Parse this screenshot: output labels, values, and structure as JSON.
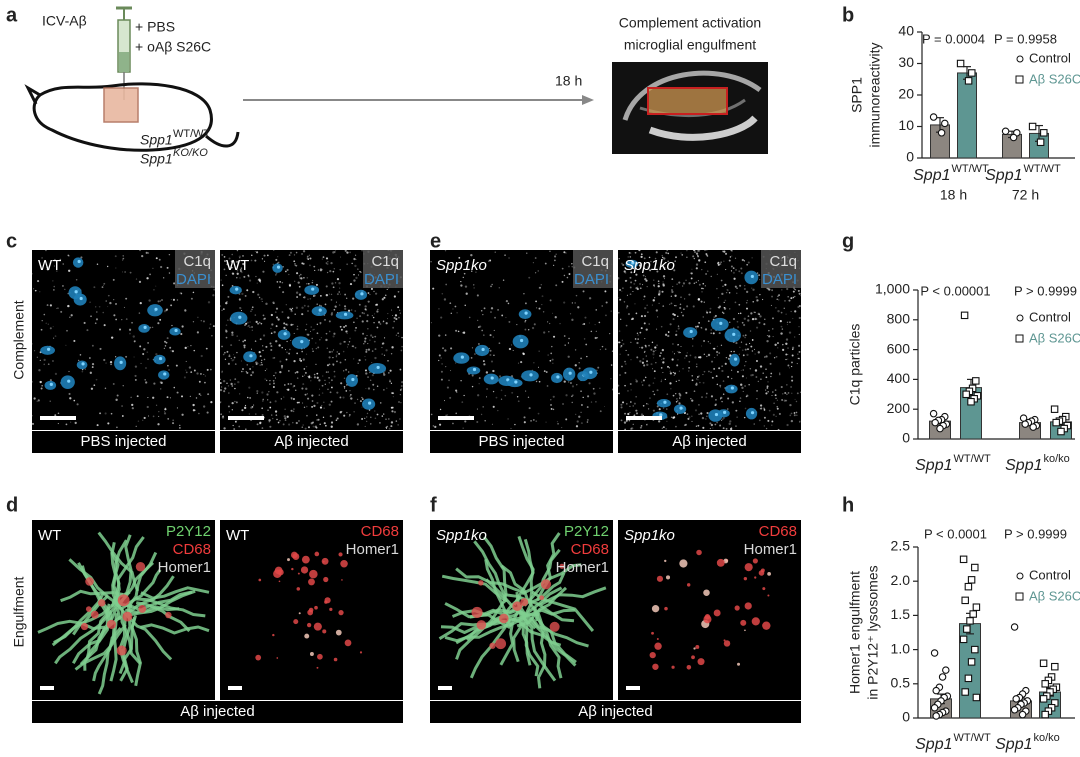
{
  "figure": {
    "panel_labels": [
      "a",
      "b",
      "c",
      "d",
      "e",
      "f",
      "g",
      "h"
    ],
    "a": {
      "injection": "ICV-Aβ",
      "treatments": [
        "+ PBS",
        "+ oAβ S26C"
      ],
      "genotypes": [
        {
          "gene": "Spp1",
          "allele": "WT/WT"
        },
        {
          "gene": "Spp1",
          "allele": "KO/KO"
        }
      ],
      "time": "18 h",
      "readouts": [
        "Complement activation",
        "microglial engulfment"
      ]
    },
    "row_labels": [
      "Complement",
      "Engulfment"
    ],
    "c": {
      "images": [
        {
          "genotype": "WT",
          "stains": [
            {
              "name": "C1q",
              "color": "#dddddd"
            },
            {
              "name": "DAPI",
              "color": "#3a8fd0"
            }
          ]
        },
        {
          "genotype": "WT",
          "stains": [
            {
              "name": "C1q",
              "color": "#dddddd"
            },
            {
              "name": "DAPI",
              "color": "#3a8fd0"
            }
          ]
        }
      ],
      "conditions": [
        "PBS injected",
        "Aβ injected"
      ]
    },
    "e": {
      "images": [
        {
          "genotype": "Spp1ko",
          "stains": [
            {
              "name": "C1q",
              "color": "#dddddd"
            },
            {
              "name": "DAPI",
              "color": "#3a8fd0"
            }
          ]
        },
        {
          "genotype": "Spp1ko",
          "stains": [
            {
              "name": "C1q",
              "color": "#dddddd"
            },
            {
              "name": "DAPI",
              "color": "#3a8fd0"
            }
          ]
        }
      ],
      "conditions": [
        "PBS injected",
        "Aβ injected"
      ]
    },
    "d": {
      "images": [
        {
          "genotype": "WT",
          "stains": [
            {
              "name": "P2Y12",
              "color": "#6fd16f"
            },
            {
              "name": "CD68",
              "color": "#f03c3c"
            },
            {
              "name": "Homer1",
              "color": "#d8d8d8"
            }
          ]
        },
        {
          "genotype": "WT",
          "stains": [
            {
              "name": "CD68",
              "color": "#f03c3c"
            },
            {
              "name": "Homer1",
              "color": "#d8d8d8"
            }
          ]
        }
      ],
      "conditions": [
        "Aβ injected"
      ]
    },
    "f": {
      "images": [
        {
          "genotype": "Spp1ko",
          "stains": [
            {
              "name": "P2Y12",
              "color": "#6fd16f"
            },
            {
              "name": "CD68",
              "color": "#f03c3c"
            },
            {
              "name": "Homer1",
              "color": "#d8d8d8"
            }
          ]
        },
        {
          "genotype": "Spp1ko",
          "stains": [
            {
              "name": "CD68",
              "color": "#f03c3c"
            },
            {
              "name": "Homer1",
              "color": "#d8d8d8"
            }
          ]
        }
      ],
      "conditions": [
        "Aβ injected"
      ]
    }
  },
  "chart_data": [
    {
      "type": "bar",
      "y_label": [
        "SPP1",
        "immunoreactivity"
      ],
      "categories": [
        "Spp1",
        "Spp1"
      ],
      "category_superscripts": [
        "WT/WT",
        "WT/WT"
      ],
      "category_sublabels": [
        "18 h",
        "72 h"
      ],
      "annotations": [
        "P = 0.0004",
        "P = 0.9958"
      ],
      "ylim": [
        0,
        40
      ],
      "yticks": [
        0,
        10,
        20,
        30,
        40
      ],
      "legend": "upper right",
      "series": [
        {
          "name": "Control",
          "color": "#8c8680",
          "marker": "circle",
          "values": [
            10.5,
            7.5
          ],
          "errors": [
            2.3,
            1.0
          ],
          "points": [
            [
              13,
              11,
              8
            ],
            [
              8.5,
              8,
              6.5
            ]
          ]
        },
        {
          "name": "Aβ S26C",
          "color": "#5e9692",
          "marker": "square",
          "values": [
            27,
            7.8
          ],
          "errors": [
            2,
            2.5
          ],
          "points": [
            [
              30,
              27,
              24.5
            ],
            [
              10,
              8,
              5
            ]
          ]
        }
      ]
    },
    {
      "type": "bar",
      "y_label": [
        "C1q particles"
      ],
      "categories": [
        "Spp1",
        "Spp1"
      ],
      "category_superscripts": [
        "WT/WT",
        "ko/ko"
      ],
      "annotations": [
        "P < 0.00001",
        "P > 0.9999"
      ],
      "ylim": [
        0,
        1000
      ],
      "yticks": [
        0,
        200,
        400,
        600,
        800,
        {
          "value": 1000,
          "label": "1,000"
        }
      ],
      "legend": "upper right",
      "series": [
        {
          "name": "Control",
          "color": "#8c8680",
          "marker": "circle",
          "values": [
            120,
            110
          ],
          "errors": [
            18,
            12
          ],
          "points": [
            [
              170,
              150,
              130,
              125,
              110,
              100,
              90,
              70
            ],
            [
              140,
              130,
              120,
              110,
              100,
              90,
              80
            ]
          ]
        },
        {
          "name": "Aβ S26C",
          "color": "#5e9692",
          "marker": "square",
          "values": [
            345,
            115
          ],
          "errors": [
            55,
            20
          ],
          "points": [
            [
              830,
              390,
              340,
              320,
              300,
              290,
              270,
              250
            ],
            [
              200,
              150,
              130,
              120,
              110,
              90,
              70,
              50
            ]
          ]
        }
      ]
    },
    {
      "type": "bar",
      "y_label": [
        "Homer1 engulfment",
        "in P2Y12⁺ lysosomes"
      ],
      "categories": [
        "Spp1",
        "Spp1"
      ],
      "category_superscripts": [
        "WT/WT",
        "ko/ko"
      ],
      "annotations": [
        "P < 0.0001",
        "P > 0.9999"
      ],
      "ylim": [
        0,
        2.5
      ],
      "yticks": [
        0,
        0.5,
        {
          "value": 1,
          "label": "1.0"
        },
        1.5,
        {
          "value": 2,
          "label": "2.0"
        },
        2.5
      ],
      "legend": "upper right",
      "series": [
        {
          "name": "Control",
          "color": "#8c8680",
          "marker": "circle",
          "values": [
            0.28,
            0.25
          ],
          "errors": [
            0.07,
            0.04
          ],
          "points": [
            [
              0.95,
              0.7,
              0.6,
              0.45,
              0.4,
              0.32,
              0.3,
              0.25,
              0.2,
              0.15,
              0.1,
              0.08,
              0.05,
              0.03
            ],
            [
              1.33,
              0.4,
              0.35,
              0.3,
              0.28,
              0.25,
              0.22,
              0.2,
              0.15,
              0.12,
              0.1,
              0.05
            ]
          ]
        },
        {
          "name": "Aβ S26C",
          "color": "#5e9692",
          "marker": "square",
          "values": [
            1.38,
            0.38
          ],
          "errors": [
            0.15,
            0.06
          ],
          "points": [
            [
              2.32,
              2.2,
              2.02,
              1.92,
              1.72,
              1.62,
              1.52,
              1.42,
              1.3,
              1.15,
              1.0,
              0.82,
              0.58,
              0.38,
              0.3
            ],
            [
              0.8,
              0.75,
              0.6,
              0.55,
              0.5,
              0.45,
              0.42,
              0.38,
              0.32,
              0.28,
              0.22,
              0.15,
              0.1,
              0.05
            ]
          ]
        }
      ]
    }
  ]
}
